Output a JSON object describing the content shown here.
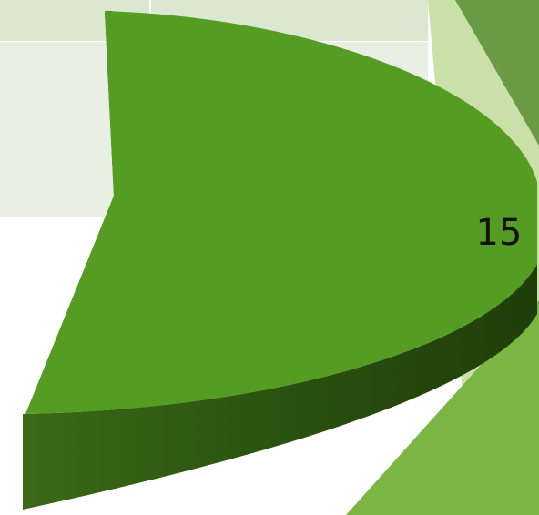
{
  "chart_data": {
    "type": "pie",
    "categories": [
      null
    ],
    "values": [
      15
    ],
    "color": "#559c22"
  }
}
